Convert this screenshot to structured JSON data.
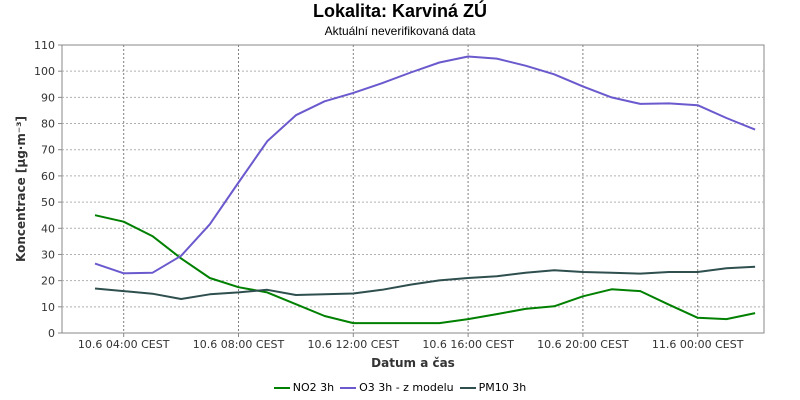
{
  "chart_data": {
    "type": "line",
    "title": "Lokalita: Karviná ZÚ",
    "subtitle": "Aktuální neverifikovaná data",
    "xlabel": "Datum a čas",
    "ylabel": "Koncentrace [µg·m⁻³]",
    "ylim": [
      0,
      110
    ],
    "yticks": [
      0,
      10,
      20,
      30,
      40,
      50,
      60,
      70,
      80,
      90,
      100,
      110
    ],
    "x": [
      "10.6 03:00",
      "10.6 04:00",
      "10.6 05:00",
      "10.6 06:00",
      "10.6 07:00",
      "10.6 08:00",
      "10.6 09:00",
      "10.6 10:00",
      "10.6 11:00",
      "10.6 12:00",
      "10.6 13:00",
      "10.6 14:00",
      "10.6 15:00",
      "10.6 16:00",
      "10.6 17:00",
      "10.6 18:00",
      "10.6 19:00",
      "10.6 20:00",
      "10.6 21:00",
      "10.6 22:00",
      "10.6 23:00",
      "11.6 00:00",
      "11.6 01:00",
      "11.6 02:00"
    ],
    "xticks": [
      "10.6 04:00 CEST",
      "10.6 08:00 CEST",
      "10.6 12:00 CEST",
      "10.6 16:00 CEST",
      "10.6 20:00 CEST",
      "11.6 00:00 CEST"
    ],
    "xtick_indices": [
      1,
      5,
      9,
      13,
      17,
      21
    ],
    "grid": true,
    "legend": "bottom",
    "series": [
      {
        "name": "NO2 3h",
        "color": "#008000",
        "values": [
          45,
          42.5,
          37,
          28.5,
          21,
          17.5,
          15.5,
          11,
          6.5,
          3.8,
          3.8,
          3.8,
          3.8,
          5.3,
          7.2,
          9.2,
          10.2,
          14,
          16.7,
          16,
          10.8,
          5.8,
          5.3,
          7.6
        ]
      },
      {
        "name": "O3 3h - z modelu",
        "color": "#6a5acd",
        "values": [
          26.5,
          22.8,
          23,
          29.5,
          41.5,
          57.5,
          73.2,
          83.2,
          88.5,
          91.7,
          95.4,
          99.5,
          103.3,
          105.6,
          104.8,
          102.1,
          98.8,
          94.2,
          90,
          87.5,
          87.7,
          87,
          82.1,
          77.7
        ]
      },
      {
        "name": "PM10 3h",
        "color": "#2f4f4f",
        "values": [
          17,
          16,
          15,
          13,
          14.8,
          15.5,
          16.5,
          14.5,
          14.8,
          15.1,
          16.5,
          18.5,
          20.1,
          21,
          21.7,
          23,
          24,
          23.3,
          23,
          22.7,
          23.3,
          23.3,
          24.7,
          25.3
        ]
      }
    ]
  }
}
